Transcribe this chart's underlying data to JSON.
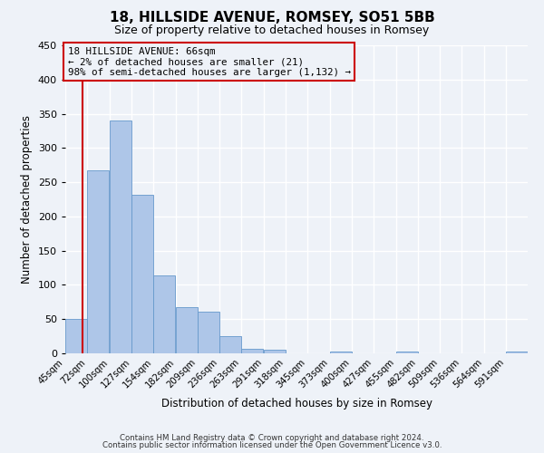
{
  "title": "18, HILLSIDE AVENUE, ROMSEY, SO51 5BB",
  "subtitle": "Size of property relative to detached houses in Romsey",
  "xlabel": "Distribution of detached houses by size in Romsey",
  "ylabel": "Number of detached properties",
  "bin_labels": [
    "45sqm",
    "72sqm",
    "100sqm",
    "127sqm",
    "154sqm",
    "182sqm",
    "209sqm",
    "236sqm",
    "263sqm",
    "291sqm",
    "318sqm",
    "345sqm",
    "373sqm",
    "400sqm",
    "427sqm",
    "455sqm",
    "482sqm",
    "509sqm",
    "536sqm",
    "564sqm",
    "591sqm"
  ],
  "bar_values": [
    50,
    267,
    340,
    232,
    114,
    67,
    61,
    25,
    7,
    5,
    0,
    0,
    2,
    0,
    0,
    2,
    0,
    0,
    0,
    0,
    2
  ],
  "bar_color": "#aec6e8",
  "bar_edgecolor": "#6699cc",
  "ylim": [
    0,
    450
  ],
  "yticks": [
    0,
    50,
    100,
    150,
    200,
    250,
    300,
    350,
    400,
    450
  ],
  "property_line_x": 66,
  "property_line_color": "#cc0000",
  "annotation_line1": "18 HILLSIDE AVENUE: 66sqm",
  "annotation_line2": "← 2% of detached houses are smaller (21)",
  "annotation_line3": "98% of semi-detached houses are larger (1,132) →",
  "annotation_box_color": "#cc0000",
  "footer_line1": "Contains HM Land Registry data © Crown copyright and database right 2024.",
  "footer_line2": "Contains public sector information licensed under the Open Government Licence v3.0.",
  "background_color": "#eef2f8",
  "grid_color": "#ffffff",
  "bin_width": 27,
  "first_bin_start": 45,
  "xlim_min": 45,
  "xlim_max": 618
}
